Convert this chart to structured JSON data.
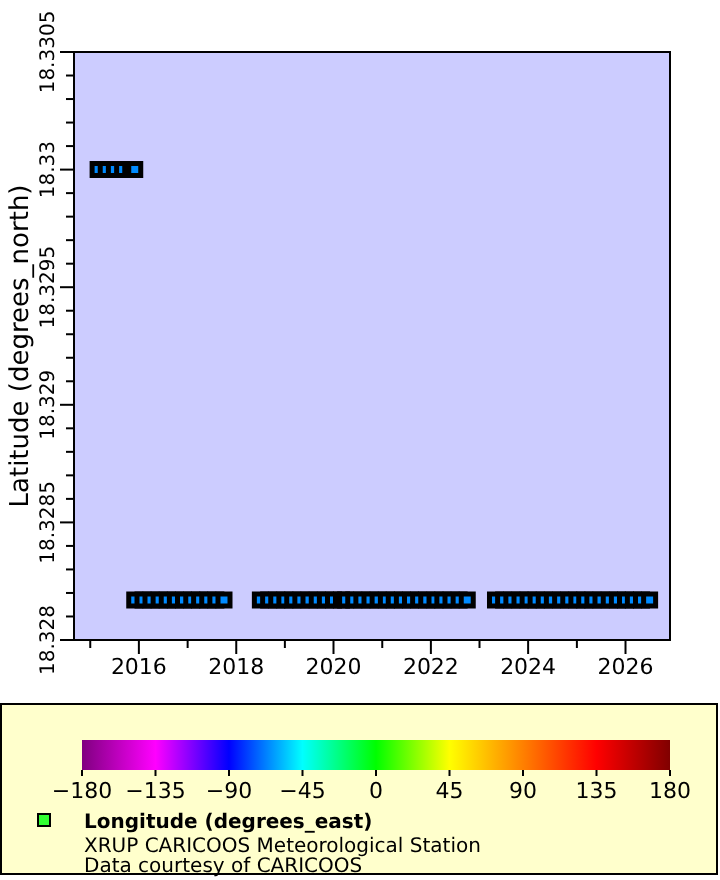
{
  "chart_data": {
    "type": "scatter",
    "ylabel": "Latitude (degrees_north)",
    "clabel": "Longitude (degrees_east)",
    "annotations": [
      "XRUP CARICOOS Meteorological Station",
      "Data courtesy of CARICOOS"
    ],
    "marker": "square",
    "grid": false,
    "xlim": [
      "2014-09",
      "2026-12"
    ],
    "xticks": [
      {
        "value": "2015",
        "label": null
      },
      {
        "value": "2016",
        "label": "2016"
      },
      {
        "value": "2017",
        "label": null
      },
      {
        "value": "2018",
        "label": "2018"
      },
      {
        "value": "2019",
        "label": null
      },
      {
        "value": "2020",
        "label": "2020"
      },
      {
        "value": "2021",
        "label": null
      },
      {
        "value": "2022",
        "label": "2022"
      },
      {
        "value": "2023",
        "label": null
      },
      {
        "value": "2024",
        "label": "2024"
      },
      {
        "value": "2025",
        "label": null
      },
      {
        "value": "2026",
        "label": "2026"
      }
    ],
    "ylim": [
      18.328,
      18.3305
    ],
    "yticks": [
      {
        "value": 18.328,
        "label": "18.328"
      },
      {
        "value": 18.3281,
        "label": null
      },
      {
        "value": 18.3282,
        "label": null
      },
      {
        "value": 18.3283,
        "label": null
      },
      {
        "value": 18.3284,
        "label": null
      },
      {
        "value": 18.3285,
        "label": "18.3285"
      },
      {
        "value": 18.3286,
        "label": null
      },
      {
        "value": 18.3287,
        "label": null
      },
      {
        "value": 18.3288,
        "label": null
      },
      {
        "value": 18.3289,
        "label": null
      },
      {
        "value": 18.329,
        "label": "18.329"
      },
      {
        "value": 18.3291,
        "label": null
      },
      {
        "value": 18.3292,
        "label": null
      },
      {
        "value": 18.3293,
        "label": null
      },
      {
        "value": 18.3294,
        "label": null
      },
      {
        "value": 18.3295,
        "label": "18.3295"
      },
      {
        "value": 18.3296,
        "label": null
      },
      {
        "value": 18.3297,
        "label": null
      },
      {
        "value": 18.3298,
        "label": null
      },
      {
        "value": 18.3299,
        "label": null
      },
      {
        "value": 18.33,
        "label": "18.33"
      },
      {
        "value": 18.3301,
        "label": null
      },
      {
        "value": 18.3302,
        "label": null
      },
      {
        "value": 18.3303,
        "label": null
      },
      {
        "value": 18.3304,
        "label": null
      },
      {
        "value": 18.3305,
        "label": "18.3305"
      }
    ],
    "clim": [
      -180,
      180
    ],
    "cticks": [
      -180,
      -135,
      -90,
      -45,
      0,
      45,
      90,
      135,
      180
    ],
    "series": [
      {
        "x": [
          "2015-03",
          "2015-05",
          "2015-07",
          "2015-09",
          "2015-11",
          "2015-12",
          "2015-12",
          "2016-02",
          "2016-04",
          "2016-06",
          "2016-08",
          "2016-10",
          "2016-12",
          "2017-02",
          "2017-04",
          "2017-06",
          "2017-08",
          "2017-10",
          "2018-07",
          "2018-09",
          "2018-11",
          "2019-01",
          "2019-03",
          "2019-05",
          "2019-07",
          "2019-09",
          "2019-11",
          "2020-01",
          "2020-03",
          "2020-04",
          "2020-06",
          "2020-08",
          "2020-10",
          "2020-12",
          "2021-02",
          "2021-04",
          "2021-06",
          "2021-08",
          "2021-10",
          "2021-12",
          "2022-02",
          "2022-04",
          "2022-06",
          "2022-08",
          "2022-10",
          "2023-05",
          "2023-07",
          "2023-09",
          "2023-11",
          "2024-01",
          "2024-03",
          "2024-05",
          "2024-07",
          "2024-09",
          "2024-11",
          "2025-01",
          "2025-03",
          "2025-05",
          "2025-07",
          "2025-09",
          "2025-11",
          "2026-01",
          "2026-03",
          "2026-05",
          "2026-07"
        ],
        "values": [
          18.33,
          18.33,
          18.33,
          18.33,
          18.33,
          18.33,
          18.32817,
          18.32817,
          18.32817,
          18.32817,
          18.32817,
          18.32817,
          18.32817,
          18.32817,
          18.32817,
          18.32817,
          18.32817,
          18.32817,
          18.32817,
          18.32817,
          18.32817,
          18.32817,
          18.32817,
          18.32817,
          18.32817,
          18.32817,
          18.32817,
          18.32817,
          18.32817,
          18.32817,
          18.32817,
          18.32817,
          18.32817,
          18.32817,
          18.32817,
          18.32817,
          18.32817,
          18.32817,
          18.32817,
          18.32817,
          18.32817,
          18.32817,
          18.32817,
          18.32817,
          18.32817,
          18.32817,
          18.32817,
          18.32817,
          18.32817,
          18.32817,
          18.32817,
          18.32817,
          18.32817,
          18.32817,
          18.32817,
          18.32817,
          18.32817,
          18.32817,
          18.32817,
          18.32817,
          18.32817,
          18.32817,
          18.32817,
          18.32817,
          18.32817
        ],
        "cvalues": [
          -65.6,
          -65.6,
          -65.6,
          -65.6,
          -65.6,
          -65.6,
          -65.6,
          -65.6,
          -65.6,
          -65.6,
          -65.6,
          -65.6,
          -65.6,
          -65.6,
          -65.6,
          -65.6,
          -65.6,
          -65.6,
          -65.6,
          -65.6,
          -65.6,
          -65.6,
          -65.6,
          -65.6,
          -65.6,
          -65.6,
          -65.6,
          -65.6,
          -65.6,
          -65.6,
          -65.6,
          -65.6,
          -65.6,
          -65.6,
          -65.6,
          -65.6,
          -65.6,
          -65.6,
          -65.6,
          -65.6,
          -65.6,
          -65.6,
          -65.6,
          -65.6,
          -65.6,
          -65.6,
          -65.6,
          -65.6,
          -65.6,
          -65.6,
          -65.6,
          -65.6,
          -65.6,
          -65.6,
          -65.6,
          -65.6,
          -65.6,
          -65.6,
          -65.6,
          -65.6,
          -65.6,
          -65.6,
          -65.6,
          -65.6,
          -65.6
        ]
      }
    ]
  }
}
